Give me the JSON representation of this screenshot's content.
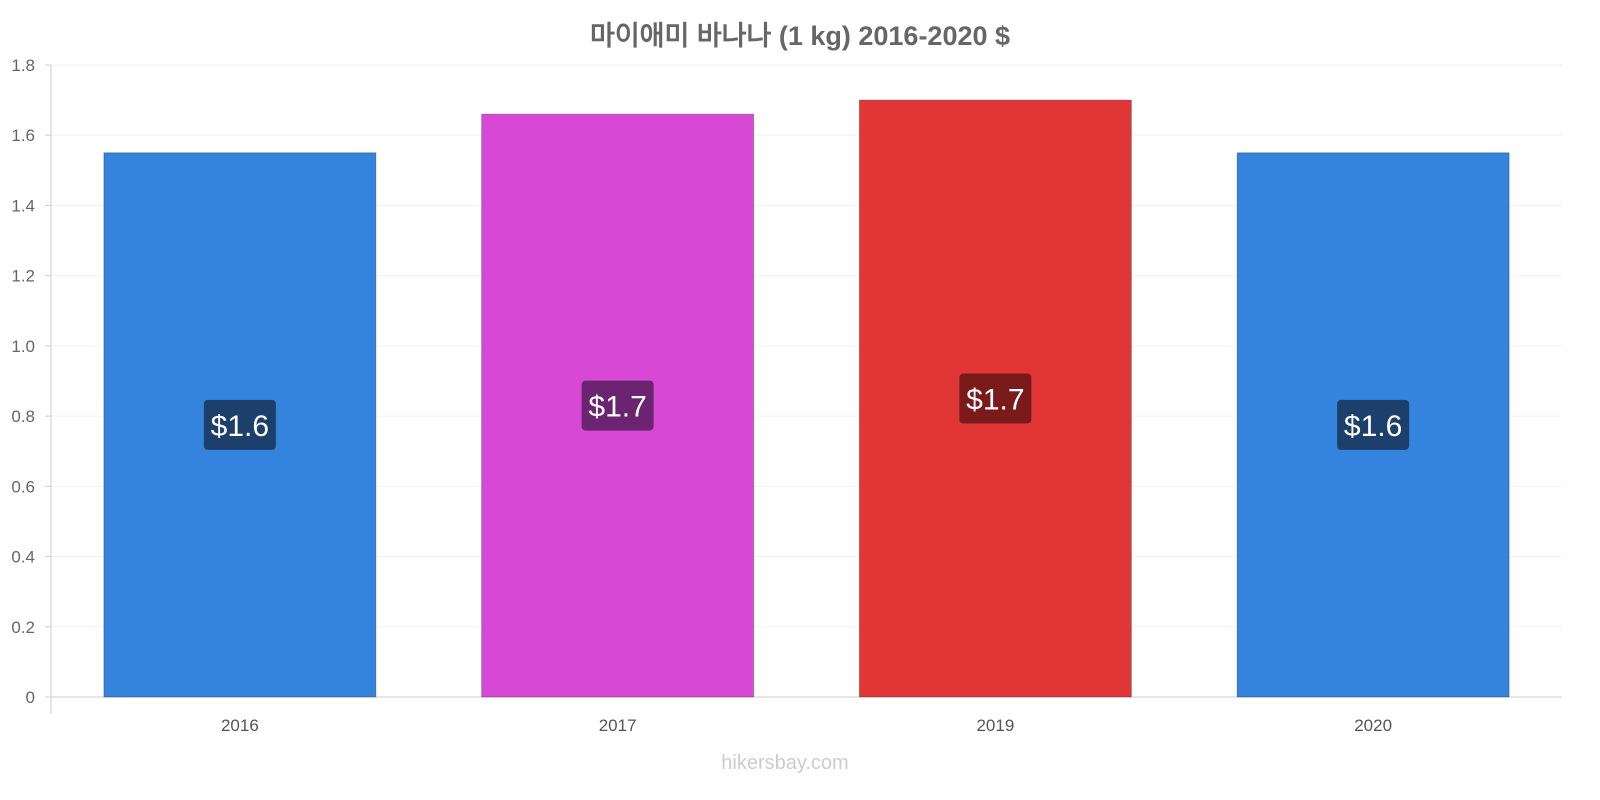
{
  "chart_data": {
    "type": "bar",
    "title": "마이애미 바나나 (1 kg) 2016-2020 $",
    "categories": [
      "2016",
      "2017",
      "2019",
      "2020"
    ],
    "values": [
      1.55,
      1.66,
      1.7,
      1.55
    ],
    "data_labels": [
      "$1.6",
      "$1.7",
      "$1.7",
      "$1.6"
    ],
    "colors": [
      "#3483dc",
      "#d748d4",
      "#e03636",
      "#3483dc"
    ],
    "label_colors": [
      "#1d3f6b",
      "#6b2470",
      "#7a1a1a",
      "#1d3f6b"
    ],
    "ylim": [
      0,
      1.8
    ],
    "yticks": [
      "0",
      "0.2",
      "0.4",
      "0.6",
      "0.8",
      "1.0",
      "1.2",
      "1.4",
      "1.6",
      "1.8"
    ],
    "xlabel": "",
    "ylabel": "",
    "grid": true
  },
  "watermark": "hikersbay.com"
}
